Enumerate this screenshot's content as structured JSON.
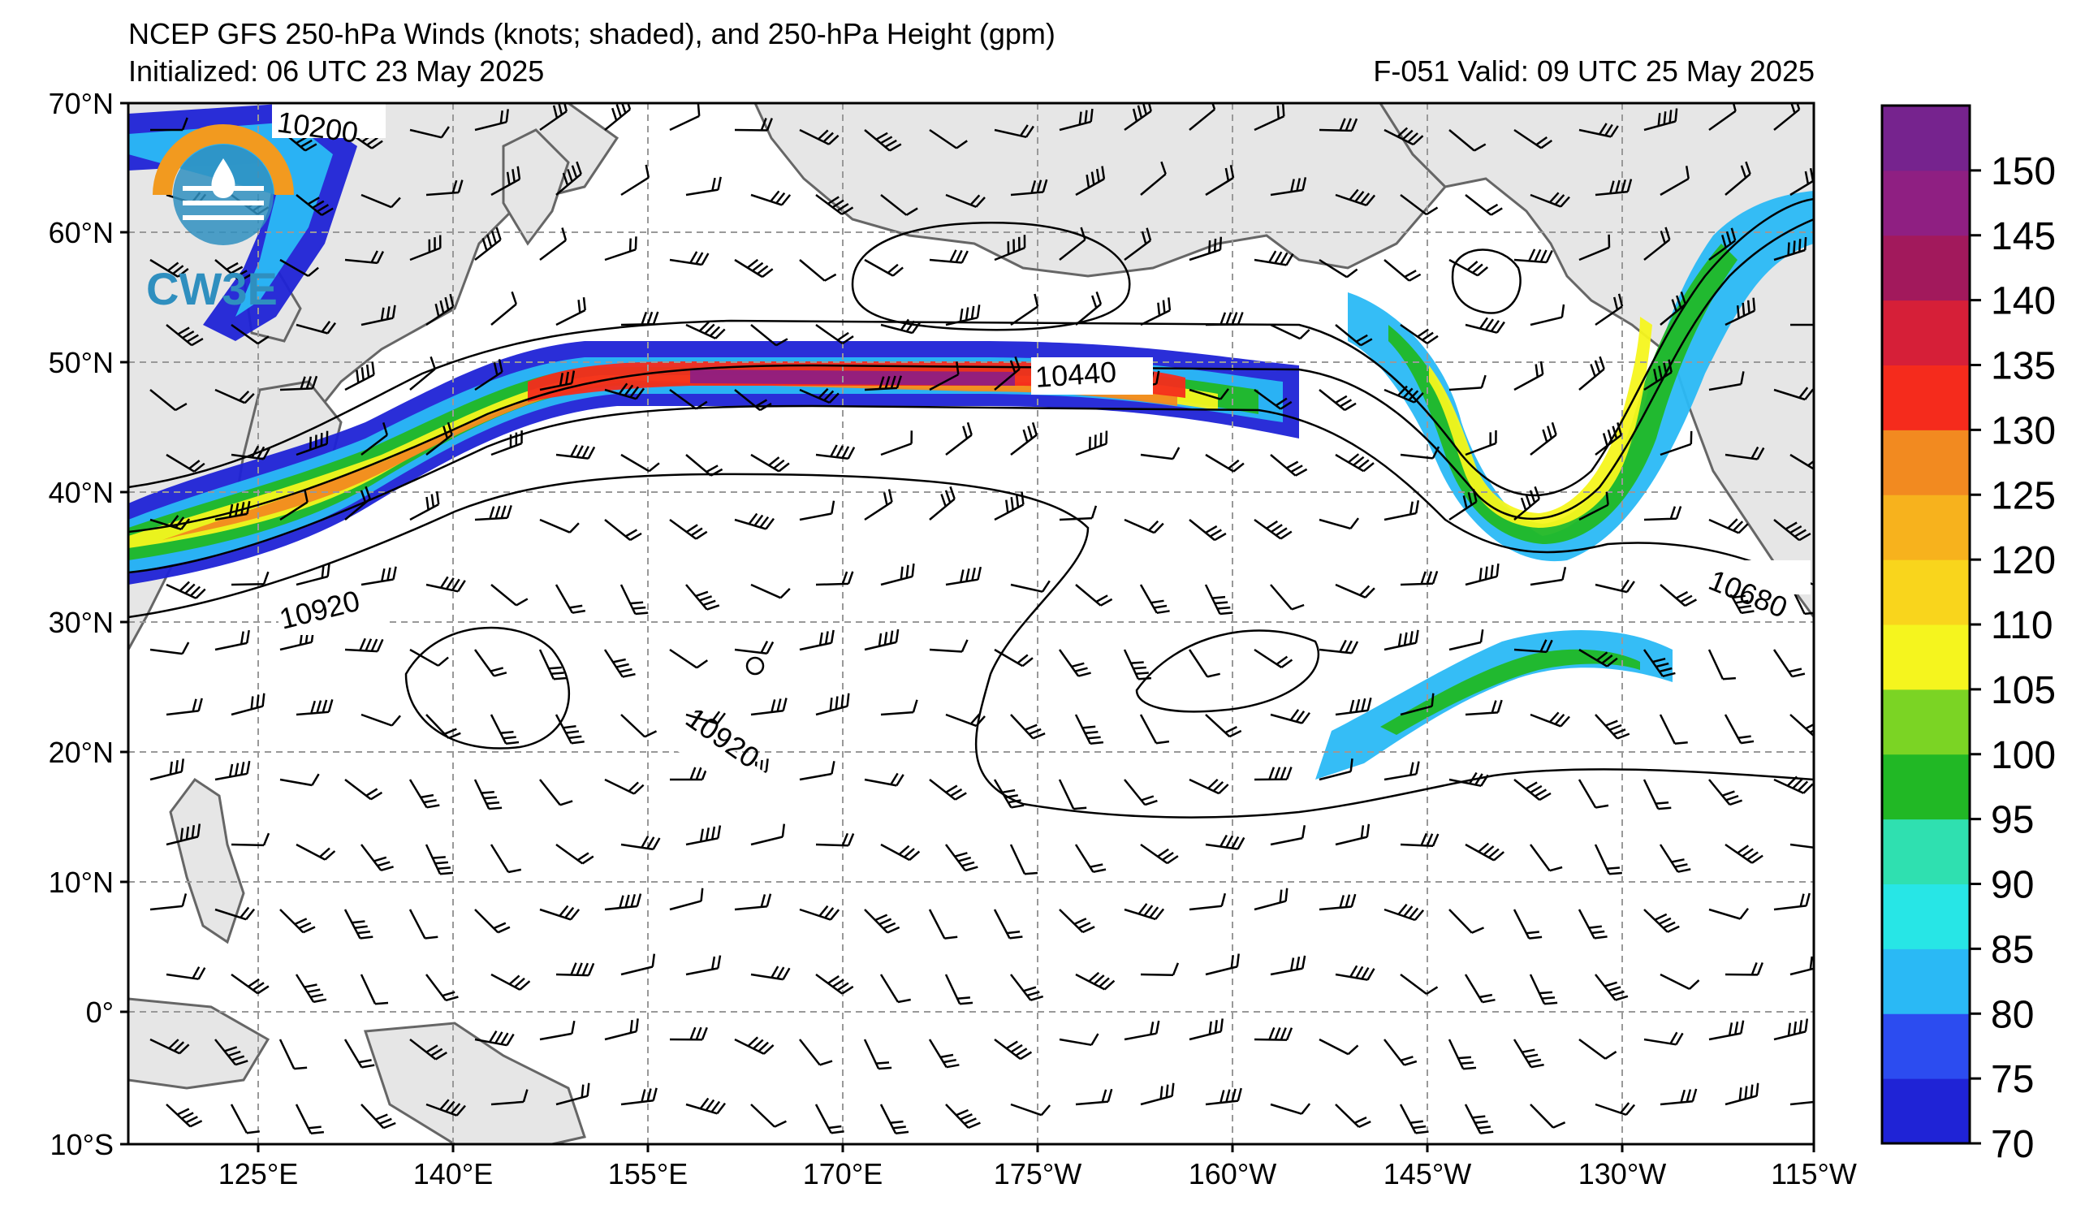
{
  "header": {
    "title": "NCEP GFS 250-hPa Winds (knots; shaded), and 250-hPa Height (gpm)",
    "initialized": "Initialized: 06 UTC 23 May 2025",
    "valid": "F-051  Valid: 09 UTC 25 May 2025"
  },
  "axes": {
    "lat_labels": [
      "70°N",
      "60°N",
      "50°N",
      "40°N",
      "30°N",
      "20°N",
      "10°N",
      "0°",
      "10°S"
    ],
    "lon_labels": [
      "125°E",
      "140°E",
      "155°E",
      "170°E",
      "175°W",
      "160°W",
      "145°W",
      "130°W",
      "115°W"
    ]
  },
  "colorbar": {
    "labels": [
      "70",
      "75",
      "80",
      "85",
      "90",
      "95",
      "100",
      "105",
      "110",
      "120",
      "125",
      "130",
      "135",
      "140",
      "145",
      "150"
    ],
    "colors": [
      "#1f23d6",
      "#2c4cf0",
      "#2ab9f5",
      "#27e6e6",
      "#2fe0b0",
      "#21b825",
      "#7bd424",
      "#f5f51e",
      "#f9d51c",
      "#f7b21d",
      "#f28a20",
      "#f52b1c",
      "#d61f38",
      "#a2195c",
      "#8f1f82",
      "#76238e"
    ]
  },
  "contours": {
    "labels": [
      "10200",
      "10440",
      "10680",
      "10920",
      "10920"
    ]
  },
  "logo": {
    "text": "CW3E"
  },
  "colors": {
    "land": "#e6e6e6",
    "coast": "#666666",
    "grid": "#999999"
  }
}
